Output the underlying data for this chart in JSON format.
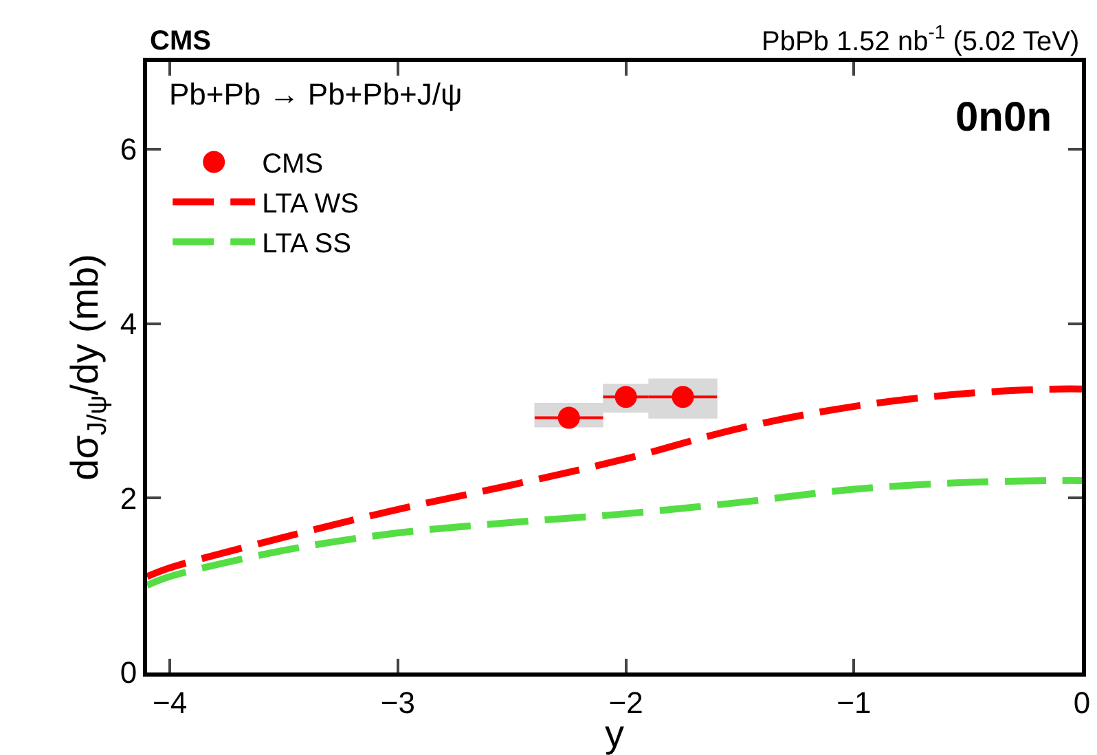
{
  "chart_data": {
    "type": "line",
    "title": "CMS",
    "subtitle": "PbPb 1.52 nb$^{-1}$ (5.02 TeV)",
    "xlabel": "y",
    "ylabel": "dσ$_{J/ψ}$/dy (mb)",
    "annotations": [
      "Pb+Pb → Pb+Pb+J/ψ",
      "0n0n"
    ],
    "xlim": [
      -4.1,
      0
    ],
    "xticks": [
      -4,
      -3,
      -2,
      -1,
      0
    ],
    "ylim": [
      0,
      7
    ],
    "yticks": [
      0,
      2,
      4,
      6
    ],
    "legend": "top left",
    "series": [
      {
        "name": "CMS",
        "type": "scatter",
        "color": "#ff0000",
        "marker": "circle",
        "x": [
          -2.25,
          -2.0,
          -1.75
        ],
        "values": [
          2.92,
          3.16,
          3.16
        ],
        "errors": [
          [
            2.81,
            3.09
          ],
          [
            2.98,
            3.31
          ],
          [
            2.91,
            3.37
          ]
        ],
        "xerrors": [
          [
            -2.4,
            -2.1
          ],
          [
            -2.1,
            -1.9
          ],
          [
            -1.9,
            -1.6
          ]
        ]
      },
      {
        "name": "LTA WS",
        "color": "#ff0000",
        "line_style": "dashed",
        "x": [
          -4.1,
          -4,
          -3.5,
          -3,
          -2.5,
          -2,
          -1.5,
          -1,
          -0.5,
          -0.1,
          0
        ],
        "values": [
          1.1,
          1.2,
          1.55,
          1.87,
          2.15,
          2.45,
          2.8,
          3.05,
          3.2,
          3.25,
          3.25
        ]
      },
      {
        "name": "LTA SS",
        "color": "#55dd44",
        "line_style": "dashed",
        "x": [
          -4.1,
          -4,
          -3.5,
          -3,
          -2.5,
          -2,
          -1.5,
          -1,
          -0.5,
          -0.1,
          0
        ],
        "values": [
          1.0,
          1.1,
          1.4,
          1.6,
          1.72,
          1.82,
          1.95,
          2.1,
          2.18,
          2.2,
          2.2
        ]
      }
    ]
  }
}
